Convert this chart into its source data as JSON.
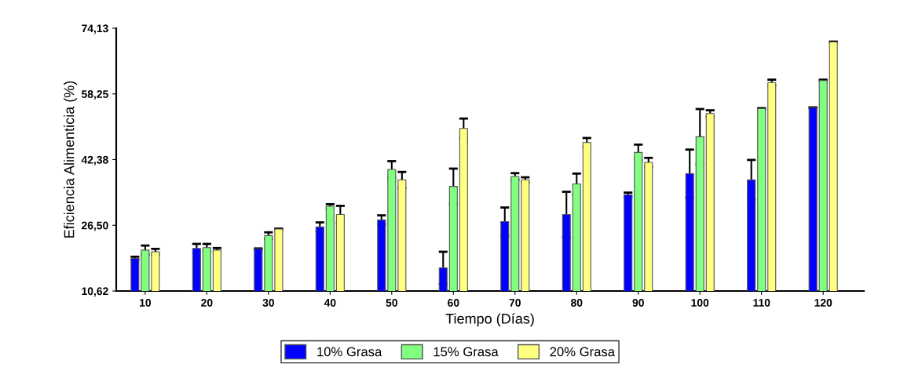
{
  "chart_data": {
    "type": "bar",
    "xlabel": "Tiempo (Días)",
    "ylabel": "Eficiencia Alimenticia (%)",
    "categories": [
      "10",
      "20",
      "30",
      "40",
      "50",
      "60",
      "70",
      "80",
      "90",
      "100",
      "110",
      "120"
    ],
    "series": [
      {
        "name": "10% Grasa",
        "color": "#0000ff",
        "values": [
          18.5,
          20.9,
          20.8,
          26.1,
          27.8,
          16.2,
          27.4,
          29.1,
          33.9,
          39.0,
          37.5,
          54.9
        ],
        "errors": [
          0.4,
          1.1,
          0.1,
          1.1,
          1.1,
          3.9,
          3.4,
          5.5,
          0.5,
          5.8,
          4.8,
          0.1
        ]
      },
      {
        "name": "15% Grasa",
        "color": "#80ff80",
        "values": [
          20.5,
          21.1,
          24.0,
          31.1,
          40.0,
          35.9,
          38.3,
          36.5,
          44.1,
          47.9,
          54.7,
          61.5
        ],
        "errors": [
          1.1,
          0.9,
          0.8,
          0.5,
          2.0,
          4.3,
          0.8,
          2.5,
          1.9,
          6.7,
          0.1,
          0.2
        ]
      },
      {
        "name": "20% Grasa",
        "color": "#ffff80",
        "values": [
          20.1,
          20.5,
          25.6,
          29.1,
          37.5,
          49.9,
          37.5,
          46.5,
          41.7,
          53.5,
          61.0,
          70.8
        ],
        "errors": [
          0.7,
          0.5,
          0.1,
          2.1,
          1.9,
          2.4,
          0.6,
          1.1,
          1.1,
          0.8,
          0.7,
          0.1
        ]
      }
    ],
    "ylim": [
      10.62,
      74.13
    ],
    "yticks": [
      {
        "value": 10.62,
        "label": "10,62"
      },
      {
        "value": 26.5,
        "label": "26,50"
      },
      {
        "value": 42.38,
        "label": "42,38"
      },
      {
        "value": 58.25,
        "label": "58,25"
      },
      {
        "value": 74.13,
        "label": "74,13"
      }
    ],
    "grid": false,
    "legend": "bottom"
  }
}
